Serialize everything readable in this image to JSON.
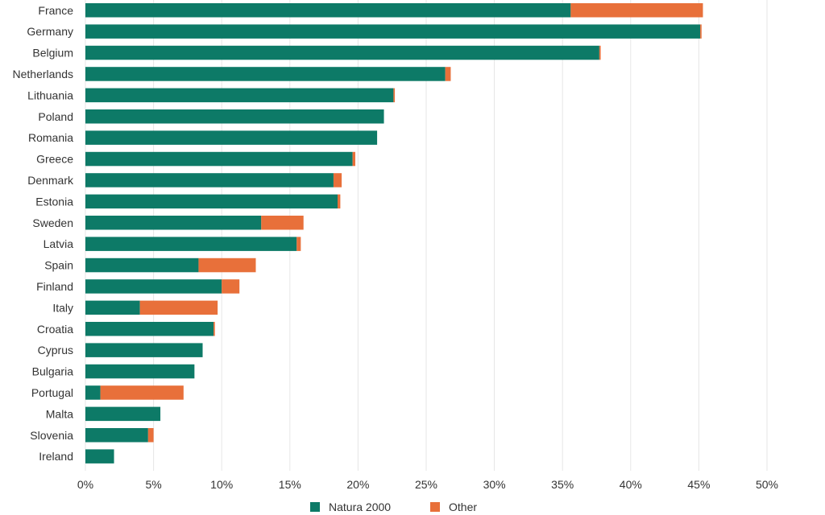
{
  "colors": {
    "natura": "#0d7a67",
    "other": "#e8703a",
    "grid": "#e6e6e6",
    "text": "#333333"
  },
  "chart_data": {
    "type": "bar",
    "orientation": "horizontal",
    "stacked": true,
    "categories": [
      "France",
      "Germany",
      "Belgium",
      "Netherlands",
      "Lithuania",
      "Poland",
      "Romania",
      "Greece",
      "Denmark",
      "Estonia",
      "Sweden",
      "Latvia",
      "Spain",
      "Finland",
      "Italy",
      "Croatia",
      "Cyprus",
      "Bulgaria",
      "Portugal",
      "Malta",
      "Slovenia",
      "Ireland"
    ],
    "series": [
      {
        "name": "Natura 2000",
        "color": "#0d7a67",
        "values": [
          35.6,
          45.1,
          37.7,
          26.4,
          22.6,
          21.9,
          21.4,
          19.6,
          18.2,
          18.5,
          12.9,
          15.5,
          8.3,
          10.0,
          4.0,
          9.4,
          8.6,
          8.0,
          1.1,
          5.5,
          4.6,
          2.1
        ]
      },
      {
        "name": "Other",
        "color": "#e8703a",
        "values": [
          9.7,
          0.1,
          0.1,
          0.4,
          0.1,
          0.0,
          0.0,
          0.2,
          0.6,
          0.2,
          3.1,
          0.3,
          4.2,
          1.3,
          5.7,
          0.1,
          0.0,
          0.0,
          6.1,
          0.0,
          0.4,
          0.0
        ]
      }
    ],
    "x_ticks": [
      "0%",
      "5%",
      "10%",
      "15%",
      "20%",
      "25%",
      "30%",
      "35%",
      "40%",
      "45%",
      "50%"
    ],
    "xlim": [
      0,
      50
    ],
    "grid": true,
    "legend_position": "bottom-center"
  }
}
